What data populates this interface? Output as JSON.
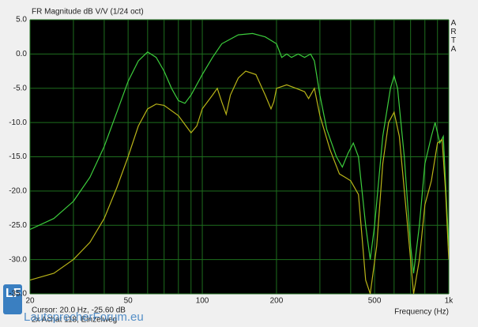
{
  "chart_data": {
    "type": "line",
    "title": "FR Magnitude dB V/V (1/24 oct)",
    "brand": "ARTA",
    "cursor": "Cursor: 20.0 Hz, -25.60 dB",
    "note": "2x Achat 118, Einzelweg",
    "xlabel": "Frequency (Hz)",
    "watermark": "LautsprecherForum.eu",
    "xscale": "log",
    "xlim": [
      20,
      1000
    ],
    "ylim": [
      -35,
      5
    ],
    "xticks": [
      20,
      50,
      100,
      200,
      500,
      {
        "value": 1000,
        "label": "1k"
      }
    ],
    "xgrid": [
      30,
      40,
      60,
      70,
      80,
      90,
      300,
      400,
      600,
      700,
      800,
      900
    ],
    "yticks": [
      {
        "value": 5,
        "label": "5.0"
      },
      {
        "value": 0,
        "label": "0.0"
      },
      {
        "value": -5,
        "label": "-5.0"
      },
      {
        "value": -10,
        "label": "-10.0"
      },
      {
        "value": -15,
        "label": "-15.0"
      },
      {
        "value": -20,
        "label": "-20.0"
      },
      {
        "value": -25,
        "label": "-25.0"
      },
      {
        "value": -30,
        "label": "-30.0"
      },
      {
        "value": -35,
        "label": "-35.0"
      }
    ],
    "grid": true,
    "series": [
      {
        "color": "#3ccc3c",
        "x": [
          20,
          25,
          30,
          35,
          40,
          45,
          50,
          55,
          60,
          65,
          70,
          75,
          80,
          85,
          90,
          100,
          110,
          120,
          140,
          160,
          180,
          200,
          210,
          220,
          230,
          245,
          260,
          275,
          285,
          300,
          320,
          350,
          370,
          390,
          410,
          430,
          460,
          480,
          500,
          540,
          580,
          600,
          620,
          660,
          700,
          720,
          760,
          800,
          850,
          880,
          920,
          950,
          980,
          1000
        ],
        "values": [
          -25.6,
          -24,
          -21.5,
          -18,
          -13.5,
          -8.5,
          -4,
          -1,
          0.3,
          -0.5,
          -2.5,
          -5,
          -6.8,
          -7.2,
          -6,
          -3,
          -0.5,
          1.5,
          2.8,
          3,
          2.5,
          1.5,
          -0.5,
          0,
          -0.5,
          0,
          -0.5,
          0,
          -1,
          -6,
          -11,
          -15,
          -16.5,
          -14.5,
          -13,
          -15,
          -25,
          -30,
          -25,
          -12,
          -5,
          -3.2,
          -5,
          -15,
          -28,
          -32,
          -25,
          -16,
          -12,
          -10,
          -13,
          -12,
          -22,
          -28
        ]
      },
      {
        "color": "#b9b418",
        "x": [
          20,
          25,
          30,
          35,
          40,
          45,
          50,
          55,
          60,
          65,
          70,
          80,
          90,
          95,
          100,
          110,
          115,
          120,
          125,
          130,
          140,
          150,
          165,
          180,
          190,
          195,
          200,
          220,
          240,
          260,
          270,
          285,
          300,
          330,
          360,
          380,
          400,
          430,
          460,
          480,
          510,
          540,
          570,
          600,
          630,
          680,
          720,
          760,
          800,
          850,
          900,
          940,
          970,
          1000
        ],
        "values": [
          -33,
          -32,
          -30,
          -27.5,
          -24,
          -19.5,
          -15,
          -10.5,
          -8,
          -7.3,
          -7.5,
          -9,
          -11.5,
          -10.5,
          -8,
          -6,
          -5,
          -7,
          -8.8,
          -6,
          -3.5,
          -2.5,
          -3,
          -6,
          -8,
          -7,
          -5,
          -4.5,
          -5,
          -5.5,
          -6.5,
          -5,
          -9,
          -14,
          -17.5,
          -18,
          -18.5,
          -20.5,
          -33,
          -35,
          -28,
          -16,
          -10,
          -8.5,
          -12,
          -25,
          -35,
          -30,
          -22,
          -18.5,
          -13,
          -12.5,
          -20,
          -30
        ]
      }
    ]
  }
}
